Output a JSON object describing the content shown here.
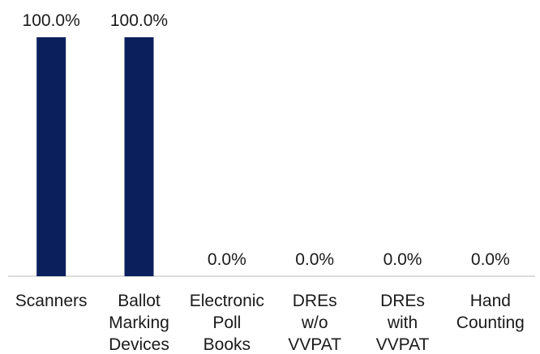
{
  "chart_data": {
    "type": "bar",
    "categories": [
      [
        "Scanners"
      ],
      [
        "Ballot",
        "Marking",
        "Devices"
      ],
      [
        "Electronic",
        "Poll",
        "Books"
      ],
      [
        "DREs",
        "w/o",
        "VVPAT"
      ],
      [
        "DREs",
        "with",
        "VVPAT"
      ],
      [
        "Hand",
        "Counting"
      ]
    ],
    "values": [
      100.0,
      100.0,
      0.0,
      0.0,
      0.0,
      0.0
    ],
    "value_labels": [
      "100.0%",
      "100.0%",
      "0.0%",
      "0.0%",
      "0.0%",
      "0.0%"
    ],
    "ylim": [
      0,
      100
    ],
    "bar_color": "#0b1f5c",
    "axis_color": "#d0d0d0",
    "grid": false
  }
}
